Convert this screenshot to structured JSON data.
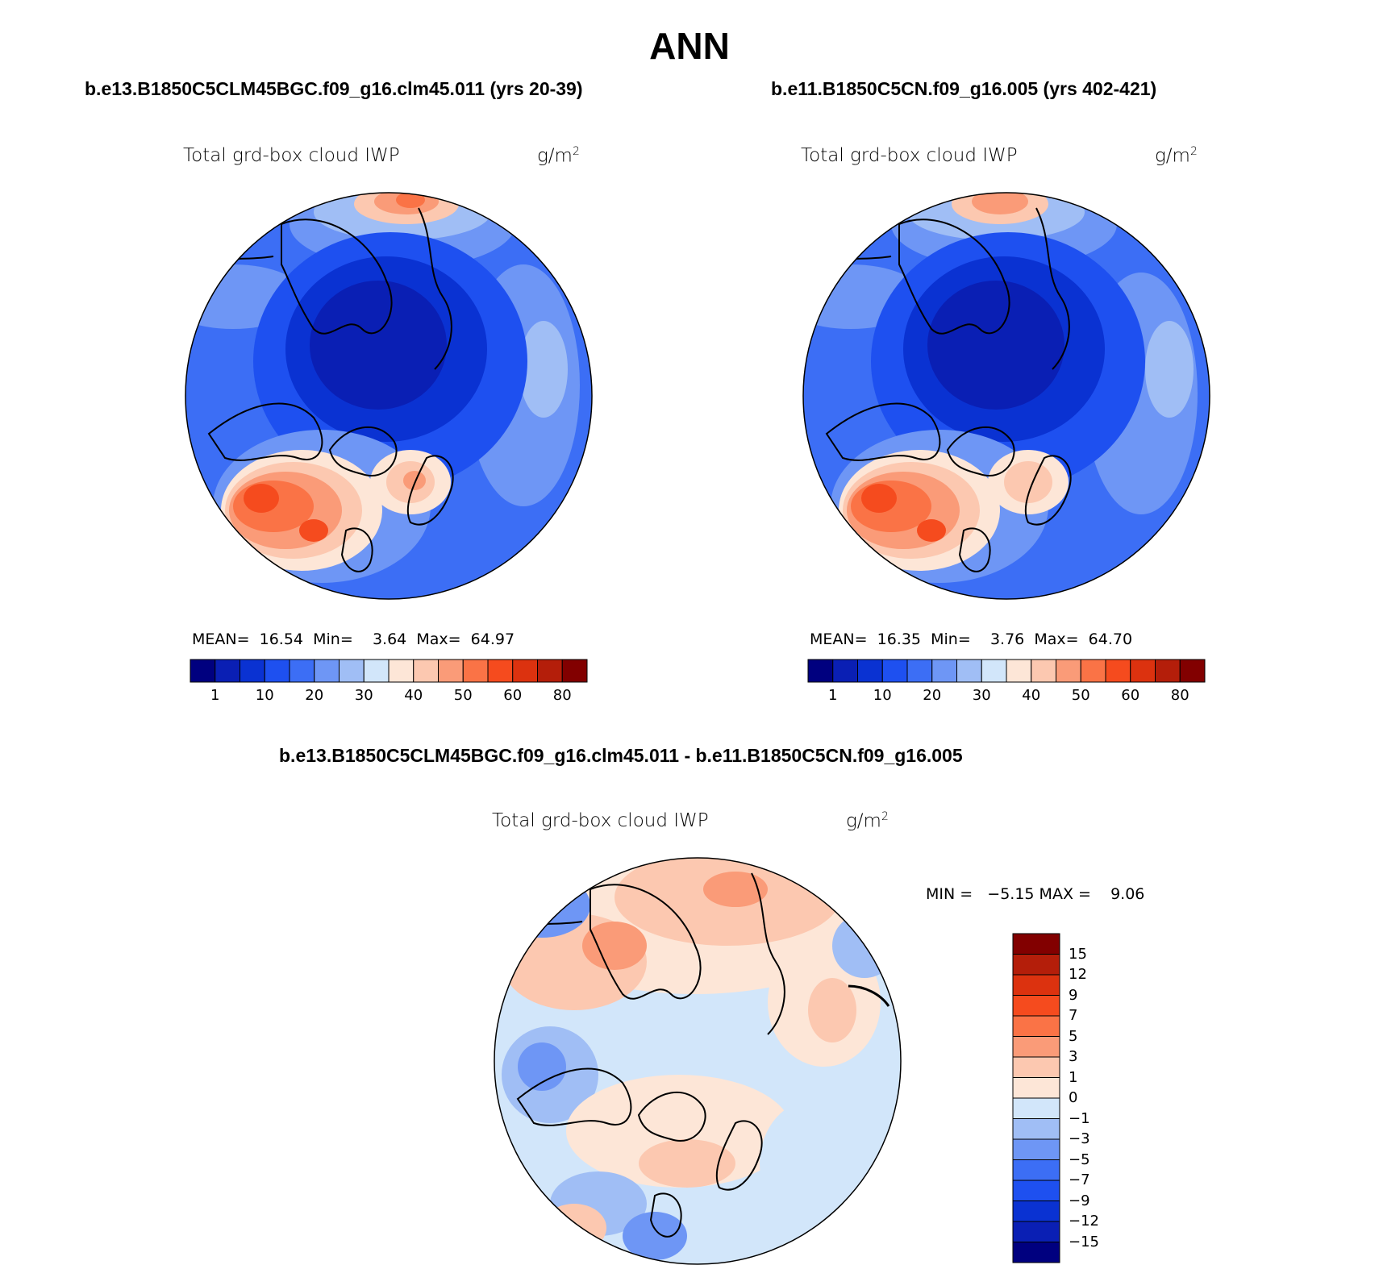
{
  "title": "ANN",
  "panels": [
    {
      "case": "b.e13.B1850C5CLM45BGC.f09_g16.clm45.011 (yrs 20-39)",
      "variable": "Total grd-box cloud IWP",
      "units": "g/m",
      "units_sup": "2",
      "mean_label": "MEAN=",
      "mean": "16.54",
      "min_label": "Min=",
      "min": "3.64",
      "max_label": "Max=",
      "max": "64.97"
    },
    {
      "case": "b.e11.B1850C5CN.f09_g16.005 (yrs 402-421)",
      "variable": "Total grd-box cloud IWP",
      "units": "g/m",
      "units_sup": "2",
      "mean_label": "MEAN=",
      "mean": "16.35",
      "min_label": "Min=",
      "min": "3.76",
      "max_label": "Max=",
      "max": "64.70"
    }
  ],
  "diff": {
    "title": "b.e13.B1850C5CLM45BGC.f09_g16.clm45.011 - b.e11.B1850C5CN.f09_g16.005",
    "variable": "Total grd-box cloud IWP",
    "units": "g/m",
    "units_sup": "2",
    "minmax": "MIN =   −5.15 MAX =    9.06"
  },
  "colorbar_abs": {
    "colors": [
      "#00007f",
      "#0a1fb4",
      "#0a32d2",
      "#1e50f0",
      "#3c6ef5",
      "#6e96f5",
      "#a0bef5",
      "#d2e6fa",
      "#fde6d7",
      "#fcc8b0",
      "#fa9b78",
      "#fa7346",
      "#f54b1e",
      "#dc320f",
      "#b41e0a",
      "#820000"
    ],
    "labels": [
      "1",
      "10",
      "20",
      "30",
      "40",
      "50",
      "60",
      "80"
    ]
  },
  "colorbar_diff": {
    "colors": [
      "#820000",
      "#b41e0a",
      "#dc320f",
      "#f54b1e",
      "#fa7346",
      "#fa9b78",
      "#fcc8b0",
      "#fde6d7",
      "#d2e6fa",
      "#a0bef5",
      "#6e96f5",
      "#3c6ef5",
      "#1e50f0",
      "#0a32d2",
      "#0a1fb4",
      "#00007f"
    ],
    "labels": [
      "15",
      "12",
      "9",
      "7",
      "5",
      "3",
      "1",
      "0",
      "−1",
      "−3",
      "−5",
      "−7",
      "−9",
      "−12",
      "−15"
    ]
  }
}
